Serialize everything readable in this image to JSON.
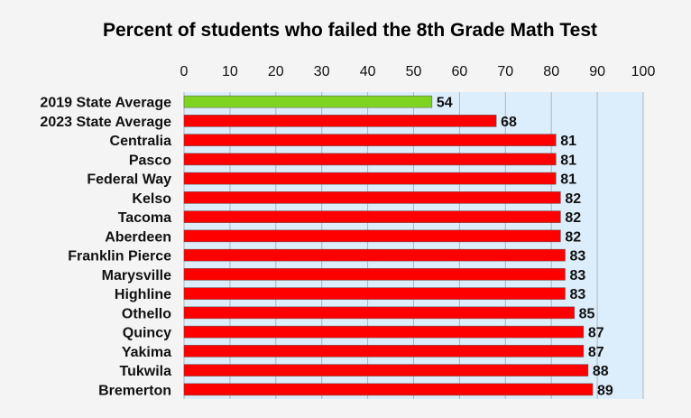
{
  "colors": {
    "background": "#f4f4f4",
    "plot_background": "#dceefc",
    "gridline": "#b3b3b3",
    "bar_default": "#ff0000",
    "bar_highlight": "#7fd321",
    "bar_outline": "#555555"
  },
  "chart_data": {
    "type": "bar",
    "orientation": "horizontal",
    "title": "Percent of students who failed the 8th Grade Math Test",
    "xlabel": "",
    "ylabel": "",
    "xlim": [
      0,
      100
    ],
    "ticks": [
      0,
      10,
      20,
      30,
      40,
      50,
      60,
      70,
      80,
      90,
      100
    ],
    "axis_position": "top",
    "grid": true,
    "legend": "none",
    "data_labels": true,
    "categories": [
      "2019 State Average",
      "2023 State Average",
      "Centralia",
      "Pasco",
      "Federal Way",
      "Kelso",
      "Tacoma",
      "Aberdeen",
      "Franklin Pierce",
      "Marysville",
      "Highline",
      "Othello",
      "Quincy",
      "Yakima",
      "Tukwila",
      "Bremerton"
    ],
    "values": [
      54,
      68,
      81,
      81,
      81,
      82,
      82,
      82,
      83,
      83,
      83,
      85,
      87,
      87,
      88,
      89
    ],
    "highlight_index": 0
  }
}
